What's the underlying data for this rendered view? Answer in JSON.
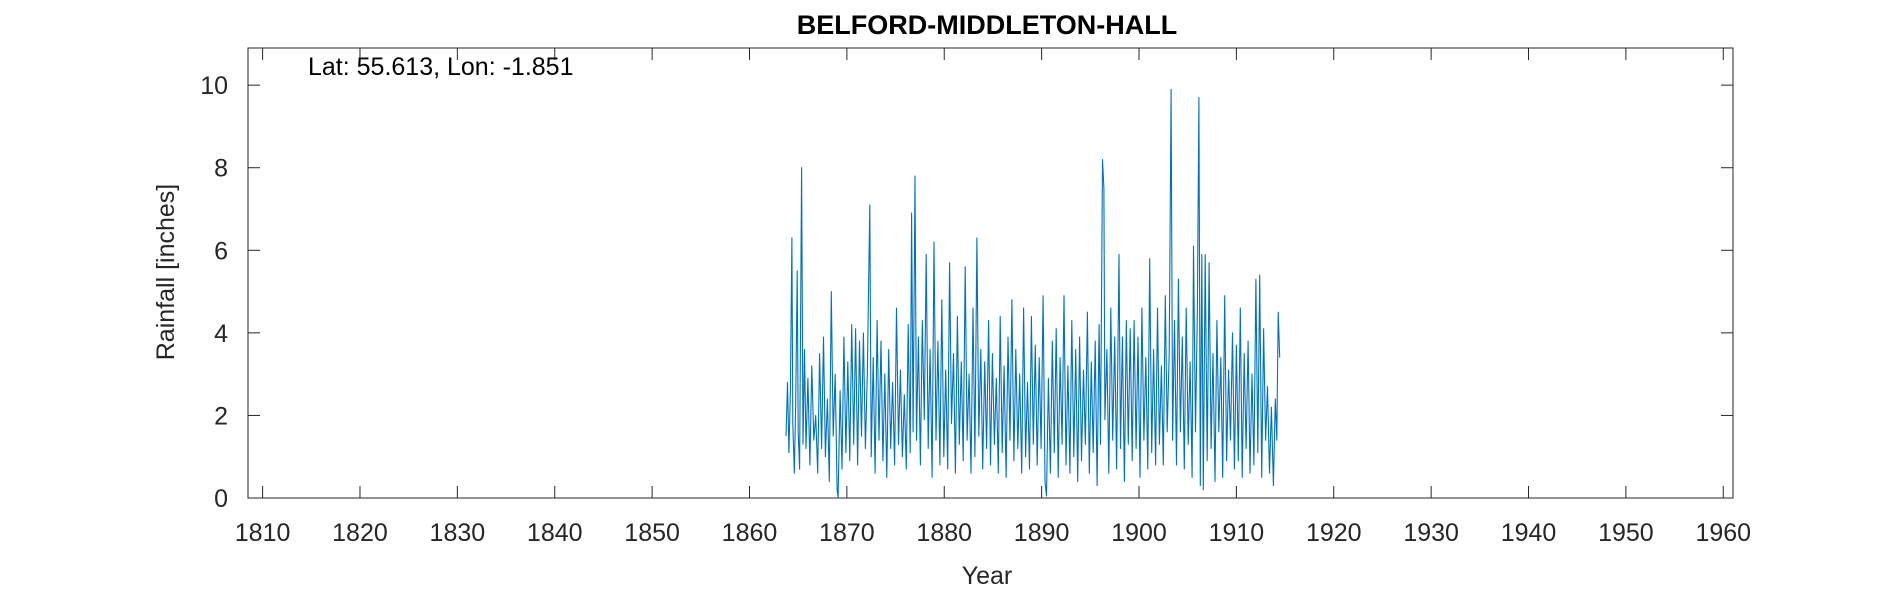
{
  "chart_data": {
    "type": "line",
    "title": "BELFORD-MIDDLETON-HALL",
    "annotation": "Lat: 55.613, Lon: -1.851",
    "xlabel": "Year",
    "ylabel": "Rainfall [inches]",
    "xlim": [
      1808.5,
      1961
    ],
    "ylim": [
      0,
      10.9
    ],
    "xticks": [
      1810,
      1820,
      1830,
      1840,
      1850,
      1860,
      1870,
      1880,
      1890,
      1900,
      1910,
      1920,
      1930,
      1940,
      1950,
      1960
    ],
    "yticks": [
      0,
      2,
      4,
      6,
      8,
      10
    ],
    "grid": false,
    "series": [
      {
        "color": "#0072BD",
        "points": [
          [
            1863.75,
            1.5
          ],
          [
            1863.9,
            2.8
          ],
          [
            1864.05,
            1.1
          ],
          [
            1864.2,
            2.6
          ],
          [
            1864.35,
            6.3
          ],
          [
            1864.45,
            1.8
          ],
          [
            1864.6,
            0.6
          ],
          [
            1864.75,
            2.3
          ],
          [
            1864.9,
            5.5
          ],
          [
            1865.0,
            1.6
          ],
          [
            1865.15,
            0.7
          ],
          [
            1865.35,
            8.0
          ],
          [
            1865.5,
            1.3
          ],
          [
            1865.65,
            3.6
          ],
          [
            1865.8,
            1.2
          ],
          [
            1866.0,
            2.9
          ],
          [
            1866.2,
            0.8
          ],
          [
            1866.4,
            3.2
          ],
          [
            1866.6,
            1.4
          ],
          [
            1866.8,
            2.0
          ],
          [
            1867.0,
            0.6
          ],
          [
            1867.2,
            3.5
          ],
          [
            1867.4,
            1.2
          ],
          [
            1867.6,
            3.9
          ],
          [
            1867.8,
            1.0
          ],
          [
            1868.0,
            2.4
          ],
          [
            1868.2,
            0.4
          ],
          [
            1868.4,
            5.0
          ],
          [
            1868.6,
            1.5
          ],
          [
            1868.8,
            3.0
          ],
          [
            1869.0,
            0.2
          ],
          [
            1869.1,
            0.0
          ],
          [
            1869.3,
            2.6
          ],
          [
            1869.5,
            0.7
          ],
          [
            1869.7,
            3.9
          ],
          [
            1869.9,
            1.1
          ],
          [
            1870.1,
            3.3
          ],
          [
            1870.3,
            0.9
          ],
          [
            1870.5,
            4.2
          ],
          [
            1870.7,
            1.3
          ],
          [
            1870.9,
            4.1
          ],
          [
            1871.1,
            0.8
          ],
          [
            1871.3,
            3.8
          ],
          [
            1871.5,
            1.5
          ],
          [
            1871.7,
            4.0
          ],
          [
            1871.9,
            1.2
          ],
          [
            1872.1,
            3.0
          ],
          [
            1872.35,
            7.1
          ],
          [
            1872.5,
            1.0
          ],
          [
            1872.7,
            3.4
          ],
          [
            1872.9,
            0.6
          ],
          [
            1873.1,
            4.3
          ],
          [
            1873.3,
            1.4
          ],
          [
            1873.5,
            3.8
          ],
          [
            1873.7,
            0.9
          ],
          [
            1873.9,
            3.0
          ],
          [
            1874.1,
            0.5
          ],
          [
            1874.3,
            3.6
          ],
          [
            1874.5,
            1.2
          ],
          [
            1874.7,
            2.8
          ],
          [
            1874.9,
            0.8
          ],
          [
            1875.1,
            4.6
          ],
          [
            1875.3,
            1.3
          ],
          [
            1875.5,
            3.1
          ],
          [
            1875.7,
            1.0
          ],
          [
            1875.9,
            2.5
          ],
          [
            1876.1,
            0.7
          ],
          [
            1876.3,
            4.2
          ],
          [
            1876.5,
            1.1
          ],
          [
            1876.65,
            6.9
          ],
          [
            1876.8,
            1.6
          ],
          [
            1877.0,
            7.8
          ],
          [
            1877.15,
            1.4
          ],
          [
            1877.35,
            3.9
          ],
          [
            1877.55,
            0.8
          ],
          [
            1877.75,
            4.3
          ],
          [
            1877.95,
            1.9
          ],
          [
            1878.15,
            5.9
          ],
          [
            1878.35,
            1.2
          ],
          [
            1878.55,
            3.6
          ],
          [
            1878.75,
            0.5
          ],
          [
            1878.95,
            6.2
          ],
          [
            1879.15,
            1.4
          ],
          [
            1879.35,
            3.8
          ],
          [
            1879.55,
            0.8
          ],
          [
            1879.75,
            4.8
          ],
          [
            1879.95,
            1.0
          ],
          [
            1880.15,
            3.1
          ],
          [
            1880.35,
            0.7
          ],
          [
            1880.55,
            5.7
          ],
          [
            1880.75,
            1.8
          ],
          [
            1880.95,
            3.5
          ],
          [
            1881.15,
            0.6
          ],
          [
            1881.35,
            4.4
          ],
          [
            1881.55,
            1.3
          ],
          [
            1881.75,
            3.3
          ],
          [
            1881.95,
            0.9
          ],
          [
            1882.15,
            5.6
          ],
          [
            1882.35,
            1.4
          ],
          [
            1882.55,
            3.0
          ],
          [
            1882.75,
            0.6
          ],
          [
            1882.95,
            4.6
          ],
          [
            1883.15,
            1.0
          ],
          [
            1883.35,
            6.3
          ],
          [
            1883.55,
            1.5
          ],
          [
            1883.75,
            3.6
          ],
          [
            1883.95,
            0.7
          ],
          [
            1884.15,
            3.3
          ],
          [
            1884.35,
            1.2
          ],
          [
            1884.55,
            4.3
          ],
          [
            1884.75,
            0.8
          ],
          [
            1884.95,
            3.5
          ],
          [
            1885.15,
            1.3
          ],
          [
            1885.35,
            2.9
          ],
          [
            1885.55,
            0.6
          ],
          [
            1885.75,
            4.4
          ],
          [
            1885.95,
            1.1
          ],
          [
            1886.15,
            3.2
          ],
          [
            1886.35,
            0.5
          ],
          [
            1886.55,
            3.9
          ],
          [
            1886.75,
            1.4
          ],
          [
            1886.95,
            4.8
          ],
          [
            1887.15,
            0.9
          ],
          [
            1887.35,
            3.6
          ],
          [
            1887.55,
            1.2
          ],
          [
            1887.75,
            3.0
          ],
          [
            1887.95,
            0.6
          ],
          [
            1888.15,
            4.6
          ],
          [
            1888.35,
            1.0
          ],
          [
            1888.55,
            2.8
          ],
          [
            1888.75,
            0.7
          ],
          [
            1888.95,
            4.4
          ],
          [
            1889.15,
            1.3
          ],
          [
            1889.35,
            3.7
          ],
          [
            1889.55,
            0.8
          ],
          [
            1889.75,
            3.4
          ],
          [
            1889.95,
            1.2
          ],
          [
            1890.15,
            4.9
          ],
          [
            1890.35,
            0.4
          ],
          [
            1890.5,
            0.05
          ],
          [
            1890.7,
            2.9
          ],
          [
            1890.9,
            0.6
          ],
          [
            1891.1,
            3.8
          ],
          [
            1891.3,
            1.1
          ],
          [
            1891.5,
            4.1
          ],
          [
            1891.7,
            0.5
          ],
          [
            1891.9,
            3.4
          ],
          [
            1892.1,
            1.3
          ],
          [
            1892.3,
            4.9
          ],
          [
            1892.5,
            0.8
          ],
          [
            1892.7,
            3.2
          ],
          [
            1892.9,
            0.6
          ],
          [
            1893.1,
            4.3
          ],
          [
            1893.3,
            1.0
          ],
          [
            1893.5,
            3.6
          ],
          [
            1893.7,
            0.4
          ],
          [
            1893.9,
            3.9
          ],
          [
            1894.1,
            0.9
          ],
          [
            1894.3,
            3.1
          ],
          [
            1894.5,
            1.3
          ],
          [
            1894.7,
            4.5
          ],
          [
            1894.9,
            0.6
          ],
          [
            1895.1,
            3.3
          ],
          [
            1895.3,
            1.1
          ],
          [
            1895.5,
            3.8
          ],
          [
            1895.7,
            0.3
          ],
          [
            1895.9,
            4.2
          ],
          [
            1896.05,
            1.3
          ],
          [
            1896.25,
            8.2
          ],
          [
            1896.4,
            7.5
          ],
          [
            1896.5,
            1.9
          ],
          [
            1896.7,
            3.6
          ],
          [
            1896.9,
            0.6
          ],
          [
            1897.1,
            4.6
          ],
          [
            1897.3,
            1.4
          ],
          [
            1897.5,
            3.9
          ],
          [
            1897.7,
            0.7
          ],
          [
            1897.95,
            5.9
          ],
          [
            1898.1,
            1.2
          ],
          [
            1898.3,
            3.9
          ],
          [
            1898.5,
            0.4
          ],
          [
            1898.7,
            4.3
          ],
          [
            1898.9,
            1.3
          ],
          [
            1899.1,
            4.1
          ],
          [
            1899.3,
            0.9
          ],
          [
            1899.5,
            4.3
          ],
          [
            1899.7,
            1.2
          ],
          [
            1899.9,
            3.9
          ],
          [
            1900.1,
            0.5
          ],
          [
            1900.3,
            4.6
          ],
          [
            1900.5,
            1.4
          ],
          [
            1900.7,
            3.4
          ],
          [
            1900.9,
            0.7
          ],
          [
            1901.1,
            5.8
          ],
          [
            1901.3,
            1.1
          ],
          [
            1901.5,
            3.6
          ],
          [
            1901.7,
            0.8
          ],
          [
            1901.9,
            4.6
          ],
          [
            1902.1,
            1.3
          ],
          [
            1902.3,
            3.2
          ],
          [
            1902.5,
            0.8
          ],
          [
            1902.7,
            4.9
          ],
          [
            1902.9,
            1.6
          ],
          [
            1903.1,
            3.5
          ],
          [
            1903.3,
            9.9
          ],
          [
            1903.45,
            1.4
          ],
          [
            1903.65,
            4.3
          ],
          [
            1903.85,
            0.8
          ],
          [
            1904.05,
            5.3
          ],
          [
            1904.25,
            1.6
          ],
          [
            1904.45,
            3.9
          ],
          [
            1904.65,
            0.7
          ],
          [
            1904.85,
            4.6
          ],
          [
            1905.05,
            1.3
          ],
          [
            1905.25,
            3.3
          ],
          [
            1905.45,
            0.5
          ],
          [
            1905.6,
            6.1
          ],
          [
            1905.8,
            1.6
          ],
          [
            1906.0,
            4.6
          ],
          [
            1906.15,
            9.7
          ],
          [
            1906.3,
            0.3
          ],
          [
            1906.45,
            5.9
          ],
          [
            1906.6,
            0.2
          ],
          [
            1906.8,
            5.9
          ],
          [
            1907.0,
            0.9
          ],
          [
            1907.2,
            5.7
          ],
          [
            1907.4,
            1.2
          ],
          [
            1907.6,
            3.5
          ],
          [
            1907.8,
            0.4
          ],
          [
            1908.0,
            4.3
          ],
          [
            1908.2,
            1.6
          ],
          [
            1908.4,
            3.4
          ],
          [
            1908.6,
            0.5
          ],
          [
            1908.8,
            4.9
          ],
          [
            1909.0,
            0.9
          ],
          [
            1909.2,
            3.1
          ],
          [
            1909.4,
            1.4
          ],
          [
            1909.6,
            4.0
          ],
          [
            1909.8,
            0.7
          ],
          [
            1910.0,
            3.7
          ],
          [
            1910.2,
            0.9
          ],
          [
            1910.4,
            4.6
          ],
          [
            1910.6,
            0.5
          ],
          [
            1910.8,
            3.5
          ],
          [
            1911.0,
            1.2
          ],
          [
            1911.2,
            3.8
          ],
          [
            1911.4,
            0.6
          ],
          [
            1911.6,
            3.0
          ],
          [
            1911.8,
            0.8
          ],
          [
            1912.0,
            5.3
          ],
          [
            1912.2,
            1.1
          ],
          [
            1912.4,
            5.4
          ],
          [
            1912.6,
            0.5
          ],
          [
            1912.8,
            4.1
          ],
          [
            1913.0,
            1.4
          ],
          [
            1913.2,
            2.7
          ],
          [
            1913.4,
            0.6
          ],
          [
            1913.6,
            2.2
          ],
          [
            1913.8,
            0.3
          ],
          [
            1914.0,
            2.4
          ],
          [
            1914.15,
            1.4
          ],
          [
            1914.3,
            4.5
          ],
          [
            1914.45,
            3.4
          ]
        ]
      }
    ]
  }
}
